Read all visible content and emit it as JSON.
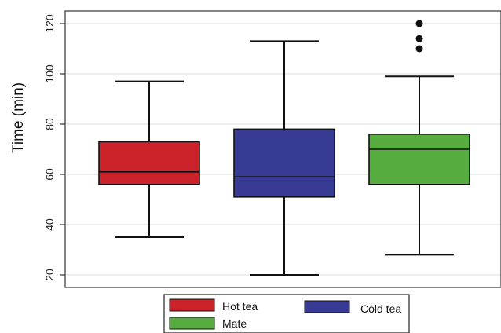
{
  "chart_data": {
    "type": "box",
    "ylabel": "Time (min)",
    "ylim": [
      15,
      125
    ],
    "yticks": [
      20,
      40,
      60,
      80,
      100,
      120
    ],
    "grid": "horizontal",
    "legend_position": "bottom",
    "series": [
      {
        "name": "Hot tea",
        "color": "#cc2229",
        "min": 35,
        "q1": 56,
        "median": 61,
        "q3": 73,
        "max": 97,
        "outliers": []
      },
      {
        "name": "Cold tea",
        "color": "#373b94",
        "min": 20,
        "q1": 51,
        "median": 59,
        "q3": 78,
        "max": 113,
        "outliers": []
      },
      {
        "name": "Mate",
        "color": "#56ac3f",
        "min": 28,
        "q1": 56,
        "median": 70,
        "q3": 76,
        "max": 99,
        "outliers": [
          110,
          114,
          120
        ]
      }
    ]
  }
}
